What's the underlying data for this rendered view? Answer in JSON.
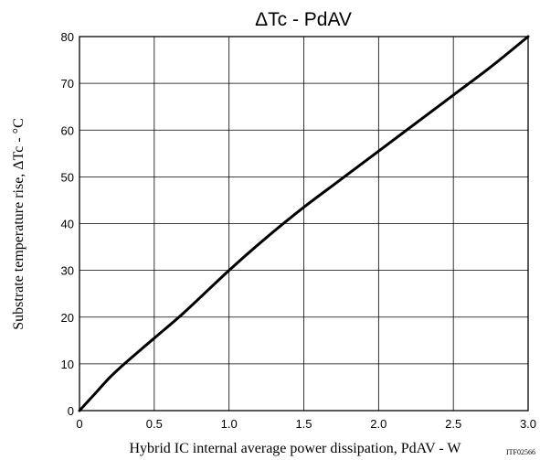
{
  "chart_data": {
    "type": "line",
    "title": "ΔTc - PdAV",
    "xlabel": "Hybrid IC internal average power dissipation, PdAV - W",
    "ylabel": "Substrate temperature rise, ΔTc - °C",
    "xlim": [
      0,
      3.0
    ],
    "ylim": [
      0,
      80
    ],
    "xticks": [
      "0",
      "0.5",
      "1.0",
      "1.5",
      "2.0",
      "2.5",
      "3.0"
    ],
    "yticks": [
      "0",
      "10",
      "20",
      "30",
      "40",
      "50",
      "60",
      "70",
      "80"
    ],
    "grid": true,
    "series": [
      {
        "x": [
          0,
          0.1,
          0.2,
          0.3,
          0.5,
          0.7,
          1.0,
          1.25,
          1.5,
          1.75,
          2.0,
          2.25,
          2.5,
          2.75,
          3.0
        ],
        "y": [
          0,
          3.5,
          7,
          10,
          15.5,
          21,
          30,
          37,
          43.5,
          49.5,
          55.5,
          61.5,
          67.5,
          73.5,
          80
        ]
      }
    ],
    "figure_code": "ITF02566"
  }
}
